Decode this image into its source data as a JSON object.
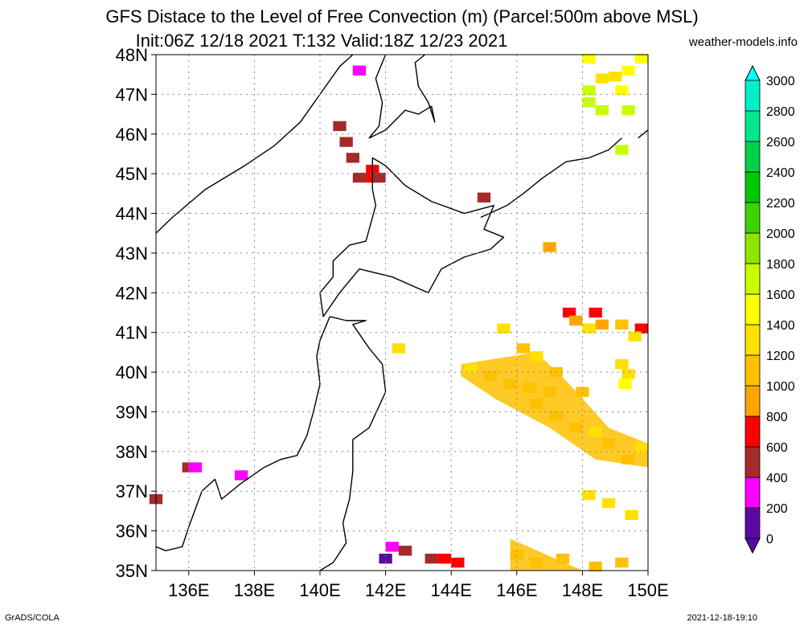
{
  "title_line1": "GFS Distace to the Level of Free Convection (m) (Parcel:500m above MSL)",
  "title_line2": "Init:06Z 12/18 2021 T:132 Valid:18Z 12/23 2021",
  "site": "weather-models.info",
  "footer_left": "GrADS/COLA",
  "footer_right": "2021-12-18-19:10",
  "map": {
    "lon_range": [
      135,
      150
    ],
    "lat_range": [
      35,
      48
    ],
    "lon_ticks": [
      136,
      138,
      140,
      142,
      144,
      146,
      148,
      150
    ],
    "lon_tick_labels": [
      "136E",
      "138E",
      "140E",
      "142E",
      "144E",
      "146E",
      "148E",
      "150E"
    ],
    "lat_ticks": [
      35,
      36,
      37,
      38,
      39,
      40,
      41,
      42,
      43,
      44,
      45,
      46,
      47,
      48
    ],
    "lat_tick_labels": [
      "35N",
      "36N",
      "37N",
      "38N",
      "39N",
      "40N",
      "41N",
      "42N",
      "43N",
      "44N",
      "45N",
      "46N",
      "47N",
      "48N"
    ],
    "grid": true
  },
  "colorbar": {
    "labels": [
      "0",
      "200",
      "400",
      "600",
      "800",
      "1000",
      "1200",
      "1400",
      "1600",
      "1800",
      "2000",
      "2200",
      "2400",
      "2600",
      "2800",
      "3000"
    ],
    "colors": [
      "#5a0aa0",
      "#ff00ff",
      "#a52a2a",
      "#ff0000",
      "#ffa500",
      "#ffc000",
      "#ffe100",
      "#ffff00",
      "#c8ff00",
      "#8ee600",
      "#3ed200",
      "#00c800",
      "#00d24a",
      "#00e68e",
      "#00f0c8",
      "#00ffff"
    ]
  },
  "cells": [
    [
      148.2,
      47.9,
      7
    ],
    [
      149.8,
      47.9,
      7
    ],
    [
      149.4,
      47.6,
      7
    ],
    [
      149.0,
      47.45,
      6
    ],
    [
      148.6,
      47.4,
      6
    ],
    [
      149.2,
      47.1,
      7
    ],
    [
      148.2,
      47.1,
      8
    ],
    [
      148.2,
      46.8,
      8
    ],
    [
      148.6,
      46.6,
      8
    ],
    [
      149.4,
      46.6,
      8
    ],
    [
      149.2,
      45.6,
      8
    ],
    [
      141.2,
      47.6,
      1
    ],
    [
      140.6,
      46.2,
      2
    ],
    [
      140.8,
      45.8,
      2
    ],
    [
      141.0,
      45.4,
      2
    ],
    [
      141.6,
      45.1,
      3
    ],
    [
      141.6,
      44.9,
      3
    ],
    [
      141.2,
      44.9,
      2
    ],
    [
      141.8,
      44.9,
      2
    ],
    [
      145.0,
      44.4,
      2
    ],
    [
      147.0,
      43.15,
      4
    ],
    [
      147.6,
      41.5,
      3
    ],
    [
      148.4,
      41.5,
      3
    ],
    [
      147.8,
      41.3,
      4
    ],
    [
      148.6,
      41.2,
      4
    ],
    [
      149.2,
      41.2,
      5
    ],
    [
      149.8,
      41.1,
      3
    ],
    [
      145.6,
      41.1,
      6
    ],
    [
      148.2,
      41.1,
      6
    ],
    [
      149.6,
      40.9,
      6
    ],
    [
      142.4,
      40.6,
      6
    ],
    [
      146.2,
      40.6,
      5
    ],
    [
      146.6,
      40.4,
      6
    ],
    [
      147.2,
      40.0,
      5
    ],
    [
      149.4,
      39.95,
      6
    ],
    [
      149.2,
      40.2,
      6
    ],
    [
      149.3,
      39.7,
      7
    ],
    [
      144.6,
      40.1,
      6
    ],
    [
      145.2,
      39.9,
      5
    ],
    [
      145.8,
      39.7,
      5
    ],
    [
      146.4,
      39.6,
      5
    ],
    [
      147.0,
      39.5,
      5
    ],
    [
      148.0,
      39.5,
      5
    ],
    [
      146.6,
      39.2,
      5
    ],
    [
      147.2,
      38.9,
      5
    ],
    [
      147.8,
      38.6,
      5
    ],
    [
      148.4,
      38.5,
      6
    ],
    [
      148.8,
      38.2,
      5
    ],
    [
      149.4,
      37.8,
      5
    ],
    [
      149.8,
      38.1,
      6
    ],
    [
      148.2,
      36.9,
      6
    ],
    [
      148.8,
      36.7,
      6
    ],
    [
      149.5,
      36.4,
      6
    ],
    [
      136.0,
      37.6,
      2
    ],
    [
      136.2,
      37.6,
      1
    ],
    [
      137.6,
      37.4,
      1
    ],
    [
      135.0,
      36.8,
      2
    ],
    [
      142.2,
      35.6,
      1
    ],
    [
      142.0,
      35.3,
      0
    ],
    [
      142.6,
      35.5,
      2
    ],
    [
      143.4,
      35.3,
      2
    ],
    [
      143.8,
      35.3,
      3
    ],
    [
      144.2,
      35.2,
      3
    ],
    [
      146.0,
      35.4,
      5
    ],
    [
      146.6,
      35.2,
      5
    ],
    [
      147.4,
      35.3,
      5
    ],
    [
      148.4,
      35.1,
      5
    ],
    [
      149.2,
      35.2,
      5
    ]
  ],
  "warm_band": [
    [
      144.3,
      40.2
    ],
    [
      146.6,
      40.5
    ],
    [
      147.6,
      39.7
    ],
    [
      148.8,
      38.6
    ],
    [
      150.0,
      38.2
    ],
    [
      150.0,
      37.6
    ],
    [
      148.4,
      37.8
    ],
    [
      147.0,
      38.6
    ],
    [
      145.4,
      39.3
    ],
    [
      144.3,
      39.9
    ]
  ],
  "south_band": [
    [
      145.8,
      35.8
    ],
    [
      148.0,
      35.0
    ],
    [
      145.8,
      35.0
    ]
  ],
  "coastlines": [
    [
      [
        135.0,
        43.5
      ],
      [
        135.5,
        43.9
      ],
      [
        136.5,
        44.6
      ],
      [
        137.7,
        45.2
      ],
      [
        138.6,
        45.7
      ],
      [
        139.4,
        46.3
      ],
      [
        140.0,
        47.0
      ],
      [
        140.6,
        47.7
      ],
      [
        141.0,
        48.0
      ]
    ],
    [
      [
        142.0,
        48.0
      ],
      [
        141.7,
        47.4
      ],
      [
        141.9,
        46.8
      ],
      [
        141.8,
        46.2
      ],
      [
        141.5,
        45.9
      ],
      [
        142.0,
        46.1
      ],
      [
        142.6,
        46.6
      ],
      [
        143.0,
        46.5
      ],
      [
        143.4,
        46.7
      ],
      [
        143.5,
        46.3
      ],
      [
        143.3,
        46.8
      ],
      [
        143.0,
        47.2
      ],
      [
        142.9,
        47.8
      ],
      [
        143.2,
        48.0
      ]
    ],
    [
      [
        141.6,
        45.4
      ],
      [
        142.0,
        45.2
      ],
      [
        142.6,
        44.7
      ],
      [
        143.4,
        44.3
      ],
      [
        144.4,
        44.0
      ],
      [
        145.3,
        44.2
      ],
      [
        145.0,
        43.6
      ],
      [
        145.6,
        43.4
      ],
      [
        145.2,
        43.1
      ],
      [
        144.4,
        42.9
      ],
      [
        143.7,
        42.6
      ],
      [
        143.3,
        42.0
      ],
      [
        142.2,
        42.4
      ],
      [
        141.2,
        42.6
      ],
      [
        140.9,
        42.3
      ],
      [
        140.6,
        42.0
      ],
      [
        140.1,
        41.4
      ],
      [
        140.0,
        42.0
      ],
      [
        140.4,
        42.4
      ],
      [
        140.4,
        42.8
      ],
      [
        140.9,
        43.2
      ],
      [
        141.4,
        43.3
      ],
      [
        141.7,
        44.2
      ],
      [
        141.6,
        44.6
      ],
      [
        141.6,
        45.4
      ]
    ],
    [
      [
        140.3,
        41.4
      ],
      [
        140.8,
        41.3
      ],
      [
        141.4,
        41.3
      ],
      [
        141.0,
        41.2
      ],
      [
        141.5,
        40.6
      ],
      [
        141.9,
        40.2
      ],
      [
        142.0,
        39.5
      ],
      [
        141.5,
        38.6
      ],
      [
        141.0,
        38.3
      ],
      [
        141.0,
        37.5
      ],
      [
        140.9,
        36.8
      ],
      [
        140.7,
        36.2
      ],
      [
        140.8,
        35.7
      ],
      [
        140.4,
        35.2
      ],
      [
        140.0,
        35.0
      ]
    ],
    [
      [
        140.3,
        41.4
      ],
      [
        140.0,
        40.8
      ],
      [
        139.9,
        40.4
      ],
      [
        140.0,
        39.7
      ],
      [
        139.8,
        39.0
      ],
      [
        139.6,
        38.4
      ],
      [
        139.3,
        37.9
      ],
      [
        138.8,
        37.8
      ],
      [
        138.3,
        37.6
      ],
      [
        137.6,
        37.2
      ],
      [
        137.0,
        36.8
      ],
      [
        136.8,
        37.3
      ],
      [
        136.4,
        37.0
      ],
      [
        136.0,
        36.1
      ],
      [
        135.8,
        35.6
      ],
      [
        135.3,
        35.5
      ],
      [
        135.0,
        35.6
      ]
    ],
    [
      [
        144.9,
        43.9
      ],
      [
        145.7,
        44.2
      ],
      [
        146.2,
        44.5
      ],
      [
        146.8,
        44.9
      ],
      [
        147.5,
        45.3
      ],
      [
        148.2,
        45.4
      ],
      [
        148.8,
        45.6
      ],
      [
        149.2,
        45.9
      ]
    ],
    [
      [
        149.7,
        45.9
      ],
      [
        150.0,
        46.1
      ]
    ]
  ]
}
